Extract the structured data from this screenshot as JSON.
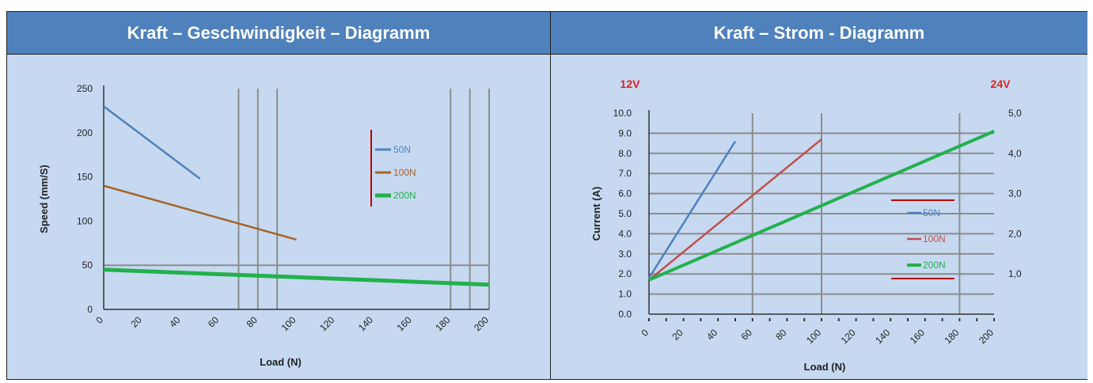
{
  "headers": {
    "left": "Kraft – Geschwindigkeit – Diagramm",
    "right": "Kraft – Strom - Diagramm"
  },
  "chart_data": [
    {
      "type": "line",
      "xlabel": "Load (N)",
      "ylabel": "Speed (mm/S)",
      "xlim": [
        0,
        200
      ],
      "ylim": [
        0,
        250
      ],
      "x_ticks": [
        0,
        20,
        40,
        60,
        80,
        100,
        120,
        140,
        160,
        180,
        200
      ],
      "y_ticks": [
        0,
        50,
        100,
        150,
        200,
        250
      ],
      "grid": {
        "horizontal": [
          50
        ],
        "vertical": [
          70,
          80,
          90,
          180,
          190,
          200
        ]
      },
      "legend_position": "right",
      "series": [
        {
          "name": "50N",
          "color": "#4f81bd",
          "points": [
            [
              0,
              230
            ],
            [
              50,
              148
            ]
          ]
        },
        {
          "name": "100N",
          "color": "#a5642a",
          "points": [
            [
              0,
              140
            ],
            [
              100,
              79
            ]
          ]
        },
        {
          "name": "200N",
          "color": "#22b14c",
          "points": [
            [
              0,
              45
            ],
            [
              200,
              28
            ]
          ]
        }
      ]
    },
    {
      "type": "line",
      "xlabel": "Load (N)",
      "ylabel": "Current (A)",
      "left_axis_title": "12V",
      "right_axis_title": "24V",
      "xlim": [
        0,
        200
      ],
      "ylim": [
        0,
        10
      ],
      "y2lim": [
        0,
        5
      ],
      "x_ticks": [
        0,
        20,
        40,
        60,
        80,
        100,
        120,
        140,
        160,
        180,
        200
      ],
      "y_ticks": [
        "0.0",
        "1.0",
        "2.0",
        "3.0",
        "4.0",
        "5.0",
        "6.0",
        "7.0",
        "8.0",
        "9.0",
        "10.0"
      ],
      "y2_ticks": [
        "1,0",
        "2,0",
        "3,0",
        "4,0",
        "5,0"
      ],
      "grid": {
        "horizontal": [
          1,
          2,
          3,
          4,
          5,
          6,
          7,
          8,
          9
        ],
        "vertical": [
          60,
          100,
          180
        ]
      },
      "legend_position": "right",
      "series": [
        {
          "name": "50N",
          "color": "#4f81bd",
          "points": [
            [
              0,
              1.8
            ],
            [
              50,
              8.6
            ]
          ]
        },
        {
          "name": "100N",
          "color": "#c0504d",
          "points": [
            [
              0,
              1.7
            ],
            [
              100,
              8.7
            ]
          ]
        },
        {
          "name": "200N",
          "color": "#22b14c",
          "points": [
            [
              0,
              1.7
            ],
            [
              200,
              9.1
            ]
          ]
        }
      ]
    }
  ]
}
